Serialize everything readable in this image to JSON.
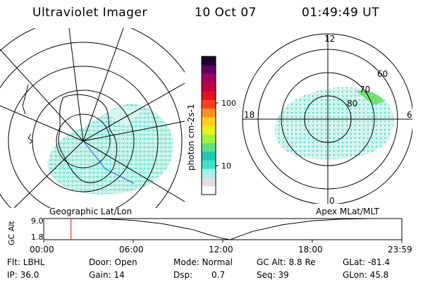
{
  "header": {
    "instrument": "Ultraviolet Imager",
    "date": "10 Oct 07",
    "time": "01:49:49 UT"
  },
  "left_map": {
    "caption": "Geographic Lat/Lon"
  },
  "right_map": {
    "caption": "Apex MLat/MLT",
    "mlt_labels": [
      "12",
      "18",
      "6",
      "0"
    ],
    "lat_labels": [
      "60",
      "70",
      "80"
    ]
  },
  "colorbar": {
    "label": "photon cm-2s-1",
    "ticks": [
      "100",
      "10"
    ],
    "colors": [
      "#ffffff",
      "#e0e0e0",
      "#a8f0e8",
      "#40e0c8",
      "#20c8b0",
      "#60e080",
      "#a0f040",
      "#e8f020",
      "#ffd020",
      "#ff9020",
      "#ff4020",
      "#e01020",
      "#c00040",
      "#a00060",
      "#600060",
      "#200030"
    ]
  },
  "chart_data": {
    "type": "line",
    "ylabel": "GC Alt",
    "y_ticks": [
      "9.0",
      "1.8"
    ],
    "x_ticks": [
      "00:00",
      "06:00",
      "12:00",
      "18:00",
      "23:59"
    ],
    "xlim": [
      0,
      24
    ],
    "ylim": [
      1.8,
      9.0
    ],
    "series": [
      {
        "x": [
          0,
          2,
          4,
          6,
          8,
          10,
          11,
          12,
          12.5,
          13,
          14,
          16,
          18,
          20,
          22,
          23.98
        ],
        "values": [
          9.0,
          9.0,
          8.9,
          8.4,
          7.2,
          5.2,
          3.6,
          2.2,
          1.8,
          2.8,
          4.6,
          6.9,
          8.2,
          8.8,
          9.0,
          9.0
        ]
      }
    ],
    "marker_time": 1.83
  },
  "info": {
    "row1": {
      "flt": "Flt: LBHL",
      "door": "Door: Open",
      "mode": "Mode: Normal",
      "gcalt": "GC Alt: 8.8 Re",
      "glat": "GLat: -81.4"
    },
    "row2": {
      "ip": "IP: 36.0",
      "gain": "Gain: 14",
      "dsp_label": "Dsp:",
      "dsp_value": "0.7",
      "seq": "Seq: 39",
      "glon": "GLon:  45.8"
    }
  }
}
